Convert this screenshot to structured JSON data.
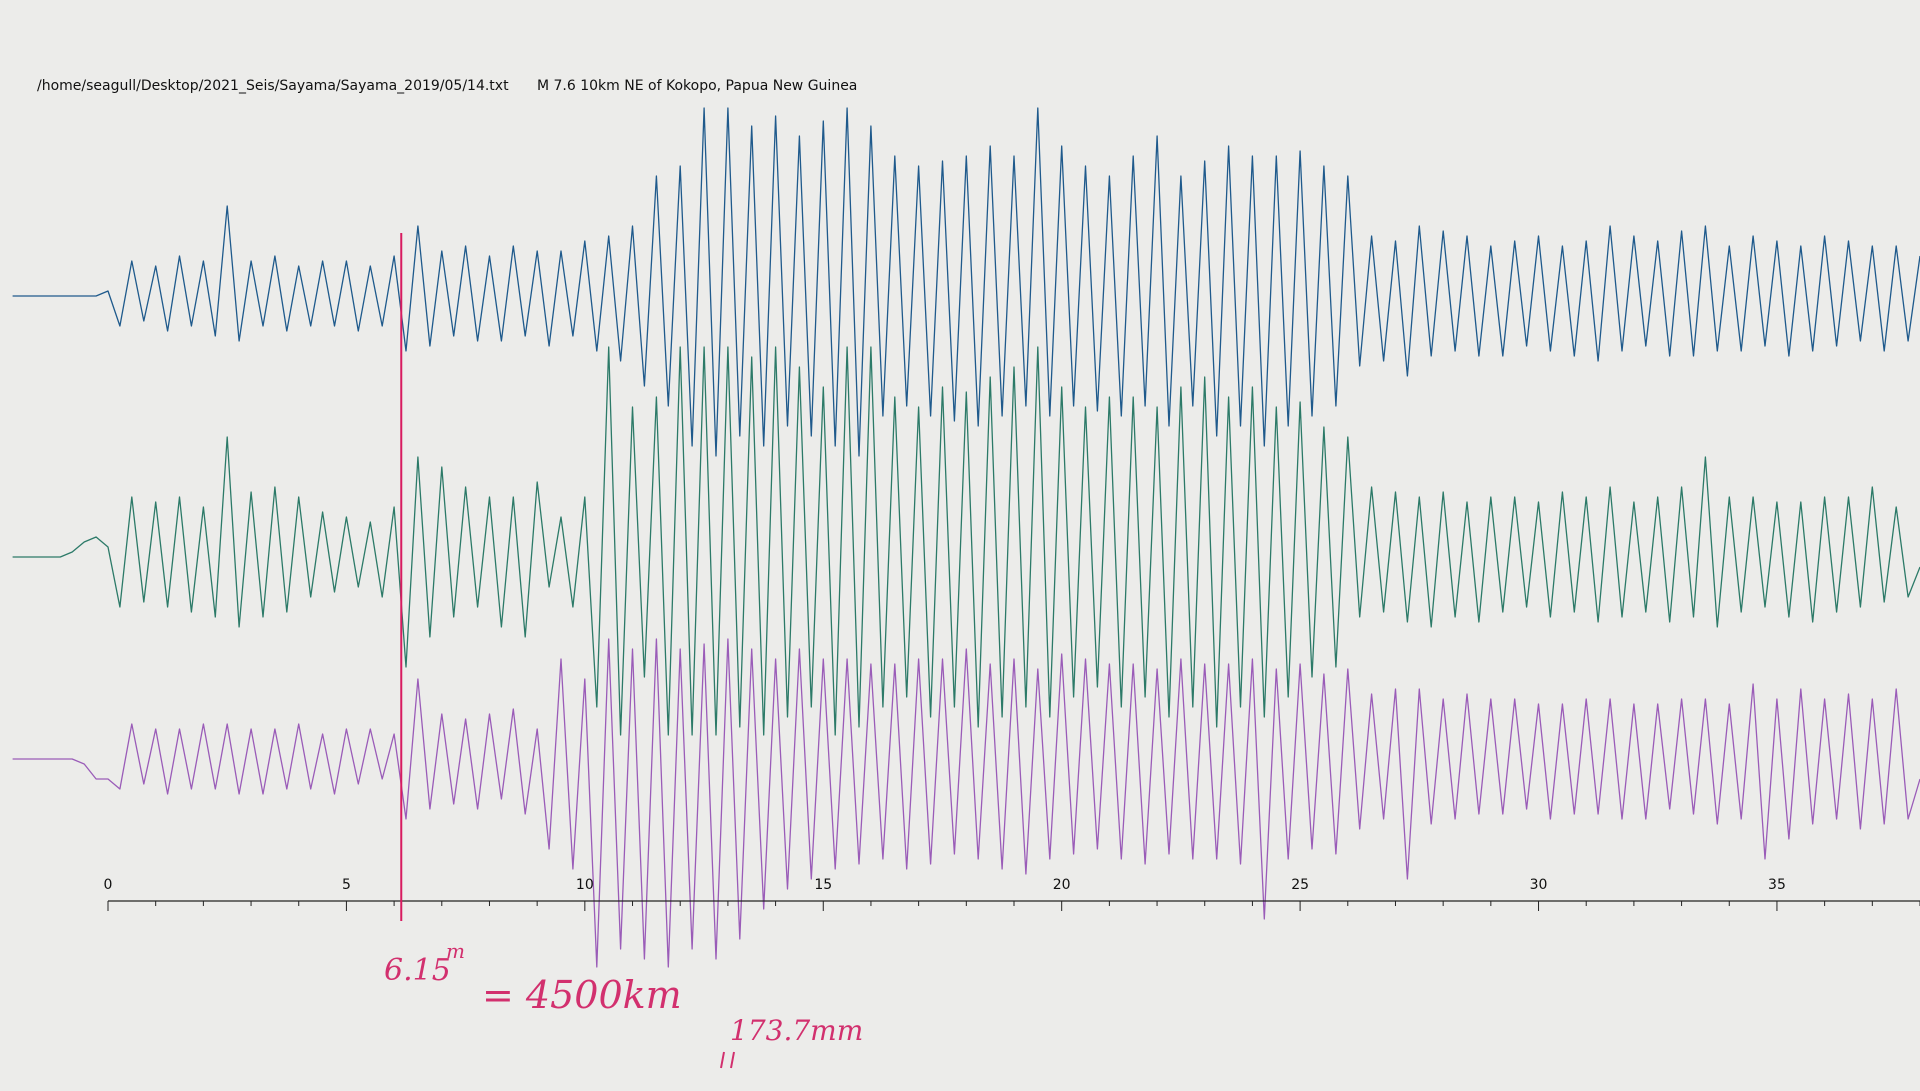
{
  "chart_data": {
    "type": "line",
    "file": "/home/seagull/Desktop/2021_Seis/Sayama/Sayama_2019/05/14.txt",
    "title": "M 7.6 10km NE of Kokopo, Papua New Guinea",
    "xlim": [
      0,
      38
    ],
    "xticks": [
      0,
      5,
      10,
      15,
      20,
      25,
      30,
      35
    ],
    "xminorticks": [
      1,
      2,
      3,
      4,
      6,
      7,
      8,
      9,
      11,
      12,
      13,
      14,
      16,
      17,
      18,
      19,
      21,
      22,
      23,
      24,
      26,
      27,
      28,
      29,
      31,
      32,
      33,
      34,
      36,
      37,
      38
    ],
    "marker": {
      "value": 6.15,
      "label": "6.15"
    },
    "marker_unit": "m",
    "distance": "= 4500km",
    "amplitude": "173.7mm",
    "x": [
      -2,
      -1.75,
      -1.5,
      -1.25,
      -1,
      -0.75,
      -0.5,
      -0.25,
      0,
      0.25,
      0.5,
      0.75,
      1,
      1.25,
      1.5,
      1.75,
      2,
      2.25,
      2.5,
      2.75,
      3,
      3.25,
      3.5,
      3.75,
      4,
      4.25,
      4.5,
      4.75,
      5,
      5.25,
      5.5,
      5.75,
      6,
      6.25,
      6.5,
      6.75,
      7,
      7.25,
      7.5,
      7.75,
      8,
      8.25,
      8.5,
      8.75,
      9,
      9.25,
      9.5,
      9.75,
      10,
      10.25,
      10.5,
      10.75,
      11,
      11.25,
      11.5,
      11.75,
      12,
      12.25,
      12.5,
      12.75,
      13,
      13.25,
      13.5,
      13.75,
      14,
      14.25,
      14.5,
      14.75,
      15,
      15.25,
      15.5,
      15.75,
      16,
      16.25,
      16.5,
      16.75,
      17,
      17.25,
      17.5,
      17.75,
      18,
      18.25,
      18.5,
      18.75,
      19,
      19.25,
      19.5,
      19.75,
      20,
      20.25,
      20.5,
      20.75,
      21,
      21.25,
      21.5,
      21.75,
      22,
      22.25,
      22.5,
      22.75,
      23,
      23.25,
      23.5,
      23.75,
      24,
      24.25,
      24.5,
      24.75,
      25,
      25.25,
      25.5,
      25.75,
      26,
      26.25,
      26.5,
      26.75,
      27,
      27.25,
      27.5,
      27.75,
      28,
      28.25,
      28.5,
      28.75,
      29,
      29.25,
      29.5,
      29.75,
      30,
      30.25,
      30.5,
      30.75,
      31,
      31.25,
      31.5,
      31.75,
      32,
      32.25,
      32.5,
      32.75,
      33,
      33.25,
      33.5,
      33.75,
      34,
      34.25,
      34.5,
      34.75,
      35,
      35.25,
      35.5,
      35.75,
      36,
      36.25,
      36.5,
      36.75,
      37,
      37.25,
      37.5,
      37.75,
      38
    ],
    "series": [
      {
        "color": "#1f5a8c",
        "values": [
          0,
          0,
          0,
          0,
          0,
          0,
          0,
          0,
          5,
          -30,
          35,
          -25,
          30,
          -35,
          40,
          -30,
          35,
          -40,
          90,
          -45,
          35,
          -30,
          40,
          -35,
          30,
          -30,
          35,
          -30,
          35,
          -35,
          30,
          -30,
          40,
          -55,
          70,
          -50,
          45,
          -40,
          50,
          -45,
          40,
          -45,
          50,
          -40,
          45,
          -50,
          45,
          -40,
          55,
          -55,
          60,
          -65,
          70,
          -90,
          120,
          -110,
          130,
          -150,
          188,
          -160,
          188,
          -140,
          170,
          -150,
          180,
          -130,
          160,
          -140,
          175,
          -150,
          188,
          -160,
          170,
          -120,
          140,
          -110,
          130,
          -120,
          135,
          -125,
          140,
          -130,
          150,
          -120,
          140,
          -110,
          188,
          -120,
          150,
          -110,
          130,
          -115,
          120,
          -120,
          140,
          -110,
          160,
          -130,
          120,
          -110,
          135,
          -140,
          150,
          -130,
          140,
          -150,
          140,
          -130,
          145,
          -120,
          130,
          -110,
          120,
          -70,
          60,
          -65,
          55,
          -80,
          70,
          -60,
          65,
          -55,
          60,
          -60,
          50,
          -60,
          55,
          -50,
          60,
          -55,
          50,
          -60,
          55,
          -65,
          70,
          -55,
          60,
          -50,
          55,
          -60,
          65,
          -60,
          70,
          -55,
          50,
          -55,
          60,
          -50,
          55,
          -60,
          50,
          -55,
          60,
          -50,
          55,
          -45,
          50,
          -55,
          50,
          -45,
          40
        ]
      },
      {
        "color": "#2c7a68",
        "values": [
          0,
          0,
          0,
          0,
          0,
          5,
          15,
          20,
          10,
          -50,
          60,
          -45,
          55,
          -50,
          60,
          -55,
          50,
          -60,
          120,
          -70,
          65,
          -60,
          70,
          -55,
          60,
          -40,
          45,
          -35,
          40,
          -30,
          35,
          -40,
          50,
          -110,
          100,
          -80,
          90,
          -60,
          70,
          -50,
          60,
          -70,
          60,
          -80,
          75,
          -30,
          40,
          -50,
          60,
          -150,
          210,
          -178,
          150,
          -120,
          160,
          -178,
          210,
          -178,
          210,
          -178,
          210,
          -170,
          200,
          -178,
          210,
          -160,
          190,
          -150,
          170,
          -178,
          210,
          -170,
          210,
          -150,
          160,
          -140,
          150,
          -160,
          170,
          -150,
          165,
          -170,
          180,
          -160,
          190,
          -150,
          210,
          -160,
          170,
          -140,
          150,
          -130,
          160,
          -150,
          160,
          -140,
          150,
          -160,
          170,
          -150,
          180,
          -170,
          160,
          -150,
          170,
          -160,
          150,
          -140,
          155,
          -120,
          130,
          -110,
          120,
          -60,
          70,
          -55,
          65,
          -65,
          60,
          -70,
          65,
          -60,
          55,
          -65,
          60,
          -55,
          60,
          -50,
          55,
          -60,
          65,
          -55,
          60,
          -65,
          70,
          -60,
          55,
          -55,
          60,
          -65,
          70,
          -60,
          100,
          -70,
          60,
          -55,
          60,
          -50,
          55,
          -60,
          55,
          -65,
          60,
          -55,
          60,
          -50,
          70,
          -45,
          50,
          -40,
          -10
        ]
      },
      {
        "color": "#9a5cb8",
        "values": [
          0,
          0,
          0,
          0,
          0,
          0,
          -5,
          -20,
          -20,
          -30,
          35,
          -25,
          30,
          -35,
          30,
          -30,
          35,
          -30,
          35,
          -35,
          30,
          -35,
          30,
          -30,
          35,
          -30,
          25,
          -35,
          30,
          -25,
          30,
          -20,
          25,
          -60,
          80,
          -50,
          45,
          -45,
          40,
          -50,
          45,
          -40,
          50,
          -55,
          30,
          -90,
          100,
          -110,
          80,
          -208,
          120,
          -190,
          110,
          -200,
          120,
          -208,
          110,
          -190,
          115,
          -200,
          120,
          -180,
          110,
          -150,
          100,
          -130,
          110,
          -120,
          100,
          -110,
          100,
          -105,
          95,
          -100,
          95,
          -110,
          100,
          -105,
          100,
          -95,
          110,
          -100,
          95,
          -110,
          100,
          -115,
          90,
          -100,
          105,
          -95,
          100,
          -90,
          95,
          -100,
          95,
          -105,
          90,
          -95,
          100,
          -100,
          95,
          -100,
          95,
          -105,
          100,
          -160,
          90,
          -100,
          95,
          -90,
          85,
          -95,
          90,
          -70,
          65,
          -60,
          70,
          -120,
          70,
          -65,
          60,
          -60,
          65,
          -55,
          60,
          -55,
          60,
          -50,
          55,
          -60,
          55,
          -55,
          60,
          -55,
          60,
          -60,
          55,
          -60,
          55,
          -50,
          60,
          -55,
          60,
          -65,
          55,
          -60,
          75,
          -100,
          60,
          -80,
          70,
          -65,
          60,
          -60,
          65,
          -70,
          60,
          -65,
          70,
          -60,
          -20
        ]
      }
    ]
  }
}
